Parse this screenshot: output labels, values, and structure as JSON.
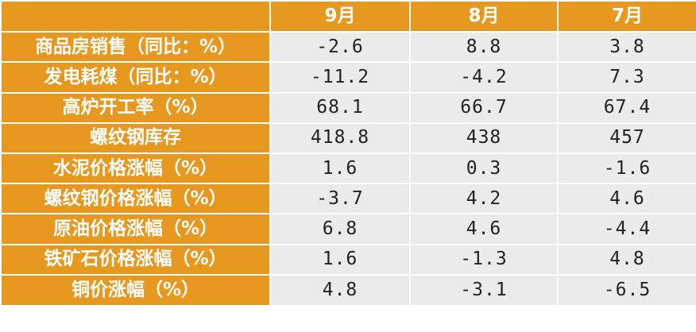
{
  "chart_data": {
    "type": "table",
    "columns": [
      "9月",
      "8月",
      "7月"
    ],
    "rows": [
      {
        "label": "商品房销售（同比：%）",
        "values": [
          "-2.6",
          "8.8",
          "3.8"
        ]
      },
      {
        "label": "发电耗煤（同比：%）",
        "values": [
          "-11.2",
          "-4.2",
          "7.3"
        ]
      },
      {
        "label": "高炉开工率（%）",
        "values": [
          "68.1",
          "66.7",
          "67.4"
        ]
      },
      {
        "label": "螺纹钢库存",
        "values": [
          "418.8",
          "438",
          "457"
        ]
      },
      {
        "label": "水泥价格涨幅（%）",
        "values": [
          "1.6",
          "0.3",
          "-1.6"
        ]
      },
      {
        "label": "螺纹钢价格涨幅（%）",
        "values": [
          "-3.7",
          "4.2",
          "4.6"
        ]
      },
      {
        "label": "原油价格涨幅（%）",
        "values": [
          "6.8",
          "4.6",
          "-4.4"
        ]
      },
      {
        "label": "铁矿石价格涨幅（%）",
        "values": [
          "1.6",
          "-1.3",
          "4.8"
        ]
      },
      {
        "label": "铜价涨幅（%）",
        "values": [
          "4.8",
          "-3.1",
          "-6.5"
        ]
      }
    ]
  },
  "colors": {
    "header_background": "#e6981f",
    "header_text": "#ffffff",
    "cell_background": "#ebebeb",
    "cell_text": "#222222",
    "grid_line": "#ffffff"
  }
}
